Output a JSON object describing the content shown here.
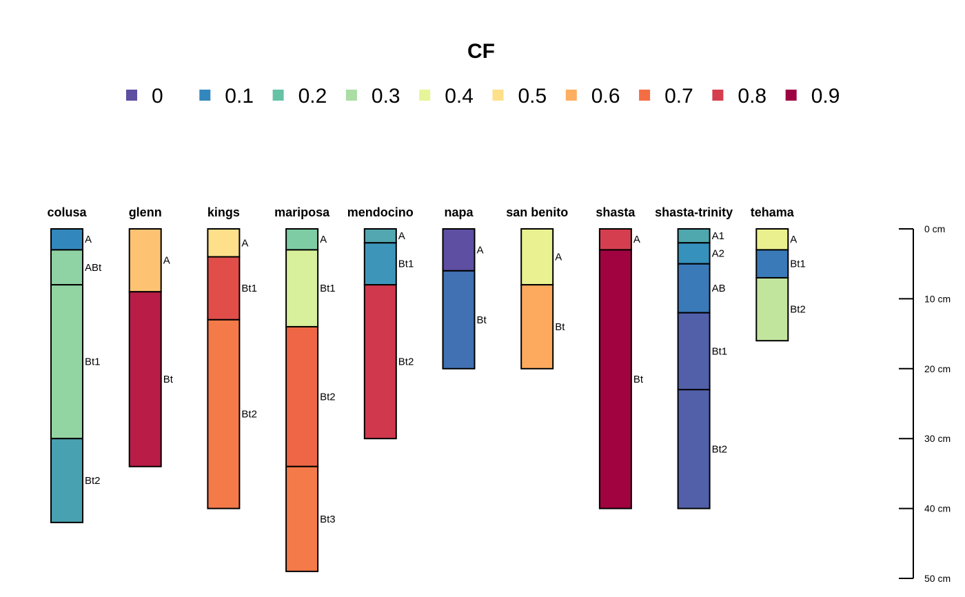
{
  "chart_data": {
    "type": "soil-profile",
    "title": "CF",
    "legend": [
      {
        "label": "0",
        "color": "#5E4FA2"
      },
      {
        "label": "0.1",
        "color": "#3288BD"
      },
      {
        "label": "0.2",
        "color": "#66C2A5"
      },
      {
        "label": "0.3",
        "color": "#ABDDA4"
      },
      {
        "label": "0.4",
        "color": "#E6F598"
      },
      {
        "label": "0.5",
        "color": "#FEE08B"
      },
      {
        "label": "0.6",
        "color": "#FDAE61"
      },
      {
        "label": "0.7",
        "color": "#F46D43"
      },
      {
        "label": "0.8",
        "color": "#D53E4F"
      },
      {
        "label": "0.9",
        "color": "#9E0142"
      }
    ],
    "depth_axis": {
      "unit": "cm",
      "ylim": [
        0,
        50
      ],
      "ticks": [
        {
          "value": 0,
          "label": "0 cm"
        },
        {
          "value": 10,
          "label": "10 cm"
        },
        {
          "value": 20,
          "label": "20 cm"
        },
        {
          "value": 30,
          "label": "30 cm"
        },
        {
          "value": 40,
          "label": "40 cm"
        },
        {
          "value": 50,
          "label": "50 cm"
        }
      ]
    },
    "profiles": [
      {
        "name": "colusa",
        "horizons": [
          {
            "name": "A",
            "top": 0,
            "bottom": 3,
            "color": "#3288BD"
          },
          {
            "name": "ABt",
            "top": 3,
            "bottom": 8,
            "color": "#8FD2A3"
          },
          {
            "name": "Bt1",
            "top": 8,
            "bottom": 30,
            "color": "#93D4A3"
          },
          {
            "name": "Bt2",
            "top": 30,
            "bottom": 42,
            "color": "#48A1B1"
          }
        ]
      },
      {
        "name": "glenn",
        "horizons": [
          {
            "name": "A",
            "top": 0,
            "bottom": 9,
            "color": "#FDC373"
          },
          {
            "name": "Bt",
            "top": 9,
            "bottom": 34,
            "color": "#B91C46"
          }
        ]
      },
      {
        "name": "kings",
        "horizons": [
          {
            "name": "A",
            "top": 0,
            "bottom": 4,
            "color": "#FEE08B"
          },
          {
            "name": "Bt1",
            "top": 4,
            "bottom": 13,
            "color": "#E14E4A"
          },
          {
            "name": "Bt2",
            "top": 13,
            "bottom": 40,
            "color": "#F57A4A"
          }
        ]
      },
      {
        "name": "mariposa",
        "horizons": [
          {
            "name": "A",
            "top": 0,
            "bottom": 3,
            "color": "#7ECCA4"
          },
          {
            "name": "Bt1",
            "top": 3,
            "bottom": 14,
            "color": "#D8EF9B"
          },
          {
            "name": "Bt2",
            "top": 14,
            "bottom": 34,
            "color": "#EE6646"
          },
          {
            "name": "Bt3",
            "top": 34,
            "bottom": 49,
            "color": "#F57A4A"
          }
        ]
      },
      {
        "name": "mendocino",
        "horizons": [
          {
            "name": "A",
            "top": 0,
            "bottom": 2,
            "color": "#52A7B0"
          },
          {
            "name": "Bt1",
            "top": 2,
            "bottom": 8,
            "color": "#3D96BA"
          },
          {
            "name": "Bt2",
            "top": 8,
            "bottom": 30,
            "color": "#CF384D"
          }
        ]
      },
      {
        "name": "napa",
        "horizons": [
          {
            "name": "A",
            "top": 0,
            "bottom": 6,
            "color": "#5E4FA2"
          },
          {
            "name": "Bt",
            "top": 6,
            "bottom": 20,
            "color": "#4170B3"
          }
        ]
      },
      {
        "name": "san benito",
        "horizons": [
          {
            "name": "A",
            "top": 0,
            "bottom": 8,
            "color": "#E9F190"
          },
          {
            "name": "Bt",
            "top": 8,
            "bottom": 20,
            "color": "#FDAA5E"
          }
        ]
      },
      {
        "name": "shasta",
        "horizons": [
          {
            "name": "A",
            "top": 0,
            "bottom": 3,
            "color": "#D53E4F"
          },
          {
            "name": "Bt",
            "top": 3,
            "bottom": 40,
            "color": "#A0033F"
          }
        ]
      },
      {
        "name": "shasta-trinity",
        "horizons": [
          {
            "name": "A1",
            "top": 0,
            "bottom": 2,
            "color": "#4FA8AE"
          },
          {
            "name": "A2",
            "top": 2,
            "bottom": 5,
            "color": "#3691BD"
          },
          {
            "name": "AB",
            "top": 5,
            "bottom": 12,
            "color": "#3A7AB8"
          },
          {
            "name": "Bt1",
            "top": 12,
            "bottom": 23,
            "color": "#5260AA"
          },
          {
            "name": "Bt2",
            "top": 23,
            "bottom": 40,
            "color": "#5260AA"
          }
        ]
      },
      {
        "name": "tehama",
        "horizons": [
          {
            "name": "A",
            "top": 0,
            "bottom": 3,
            "color": "#EBF08E"
          },
          {
            "name": "Bt1",
            "top": 3,
            "bottom": 7,
            "color": "#3A7AB8"
          },
          {
            "name": "Bt2",
            "top": 7,
            "bottom": 16,
            "color": "#C2E59E"
          }
        ]
      }
    ]
  }
}
